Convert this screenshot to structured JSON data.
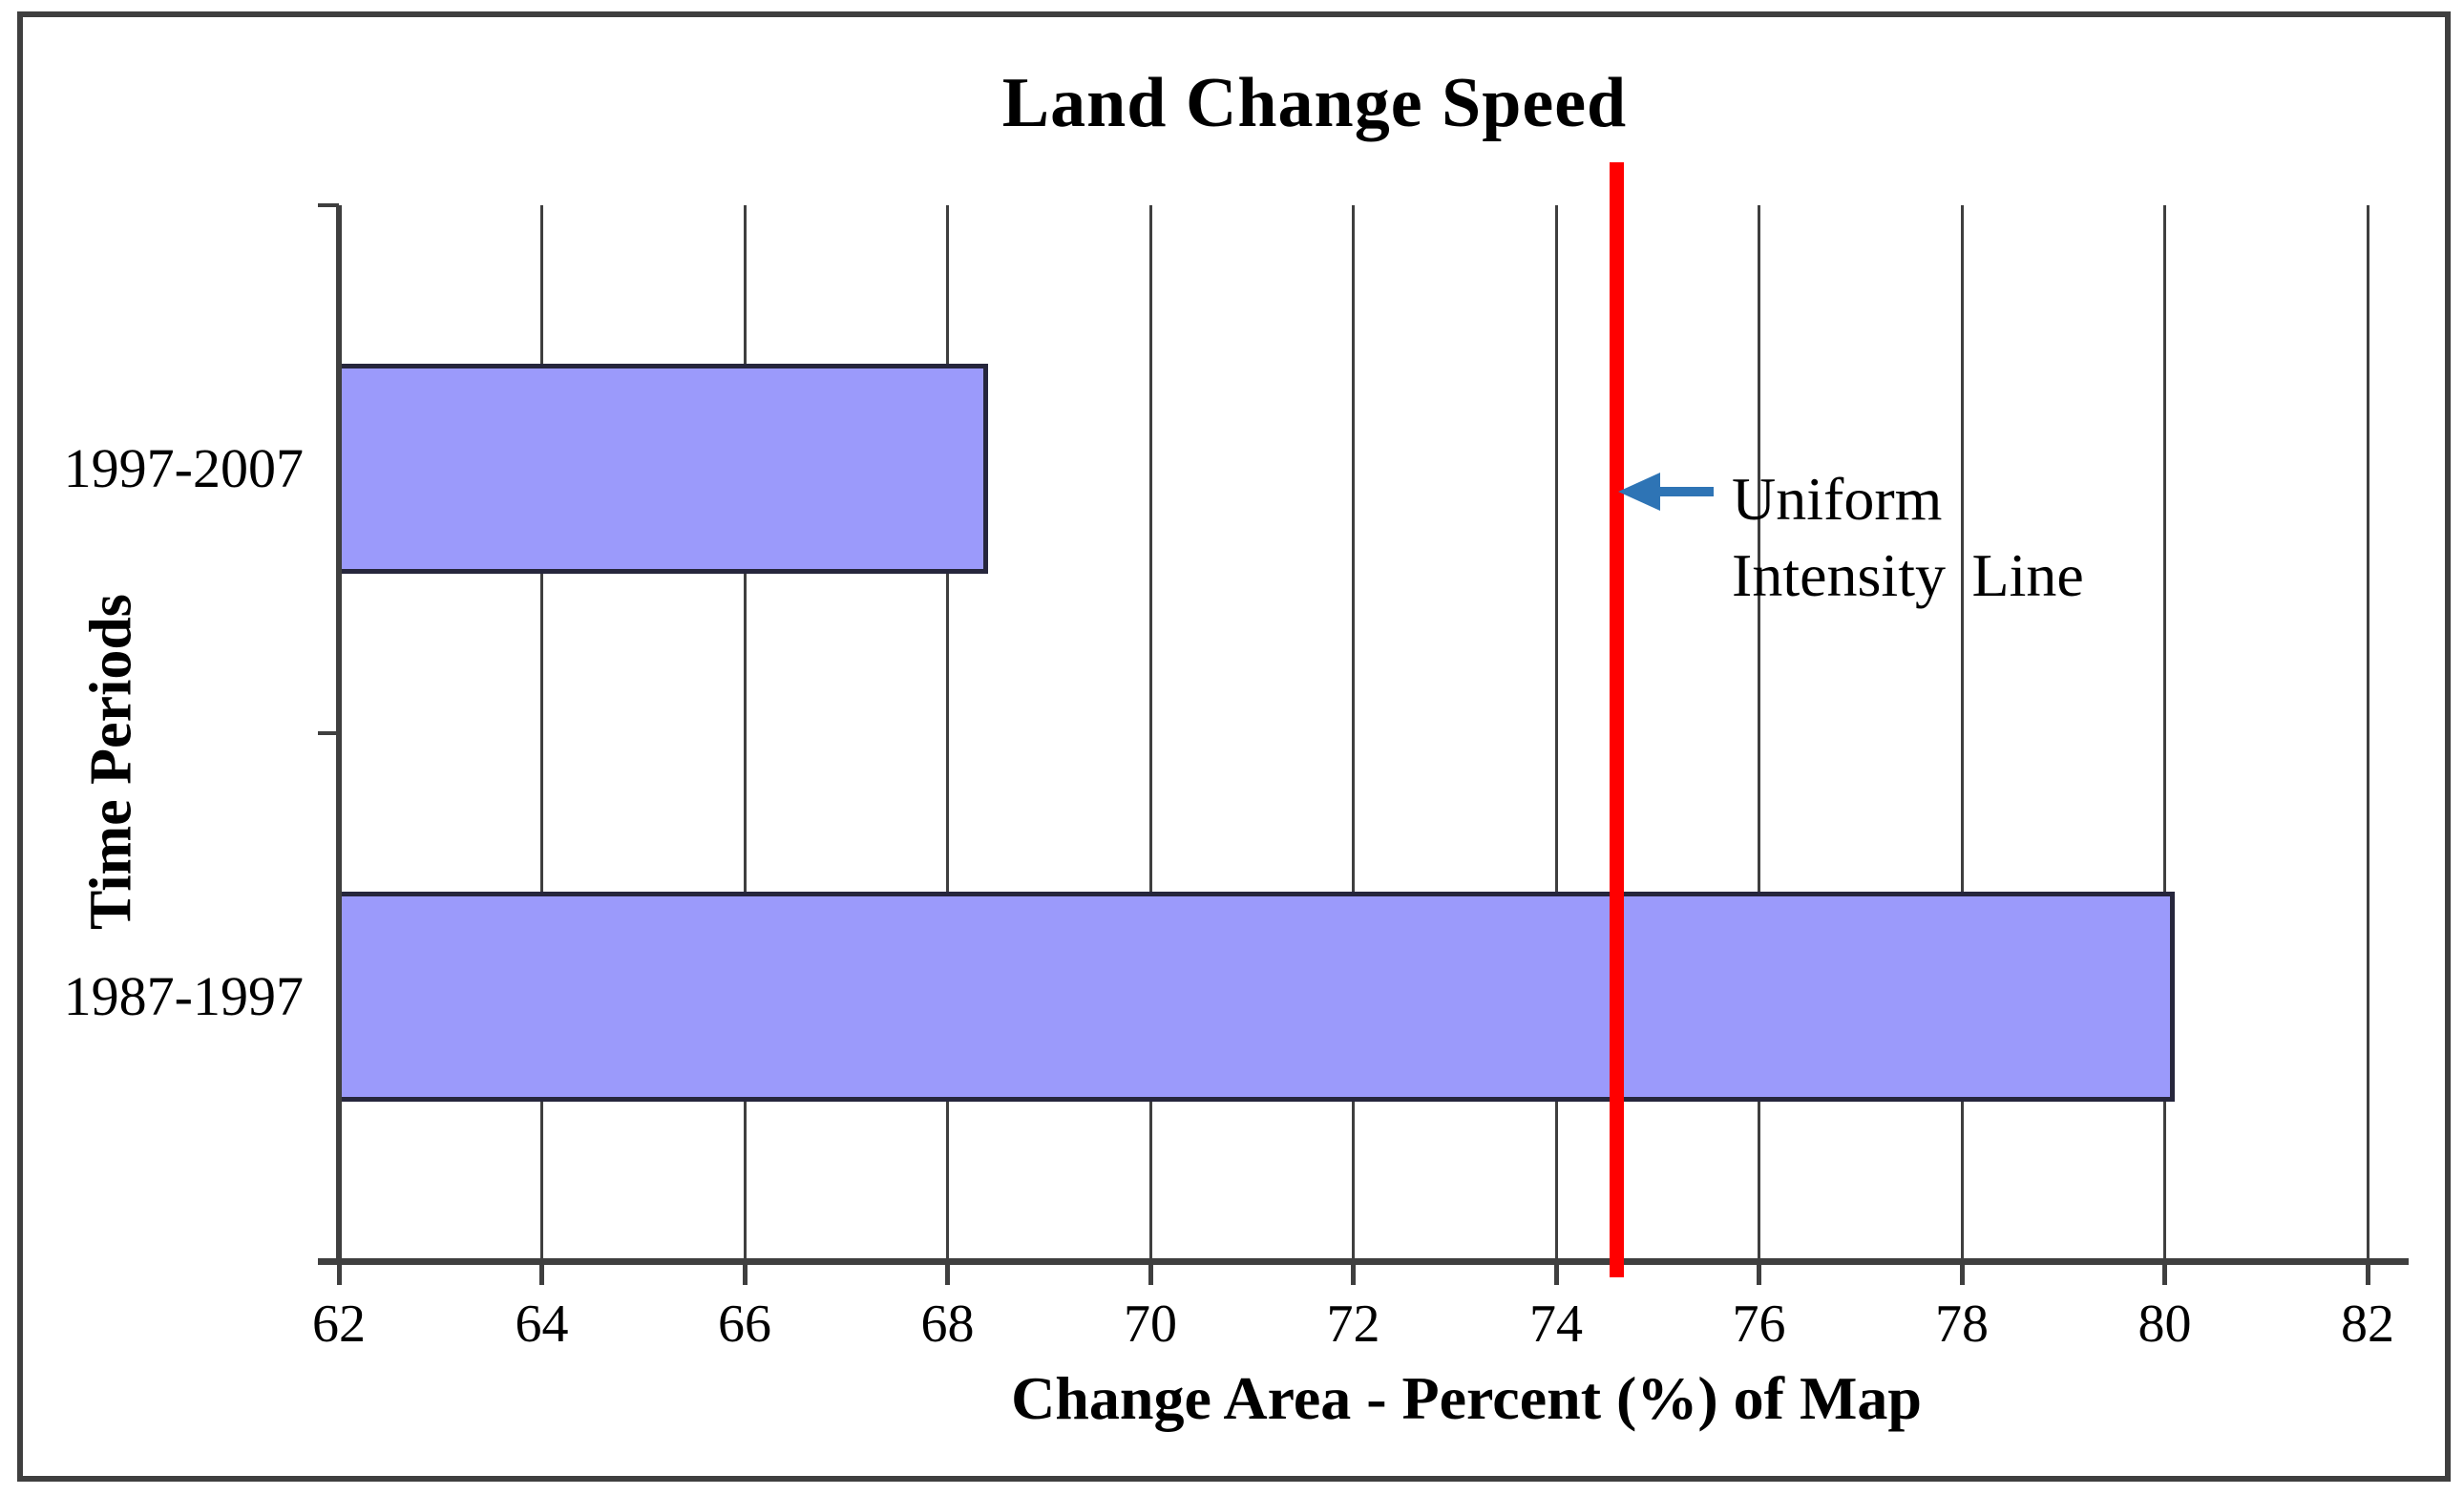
{
  "chart_data": {
    "type": "bar",
    "orientation": "horizontal",
    "title": "Land Change Speed",
    "xlabel": "Change Area - Percent (%) of Map",
    "ylabel": "Time Periods",
    "categories": [
      "1997-2007",
      "1987-1997"
    ],
    "values": [
      68.4,
      80.1
    ],
    "xlim": [
      62,
      82
    ],
    "xticks": [
      62,
      64,
      66,
      68,
      70,
      72,
      74,
      76,
      78,
      80,
      82
    ],
    "grid": "vertical-gridlines-on",
    "legend": "none",
    "bar_color": "#9b9afb",
    "bar_border_color": "#26263c",
    "gridline_color": "#3f3f3f",
    "reference_line": {
      "value": 74.6,
      "label": "Uniform Intensity Line",
      "color": "#ff0000"
    }
  },
  "annotation": {
    "line1": "Uniform",
    "line2": "Intensity Line",
    "arrow_color": "#2e74b5"
  }
}
